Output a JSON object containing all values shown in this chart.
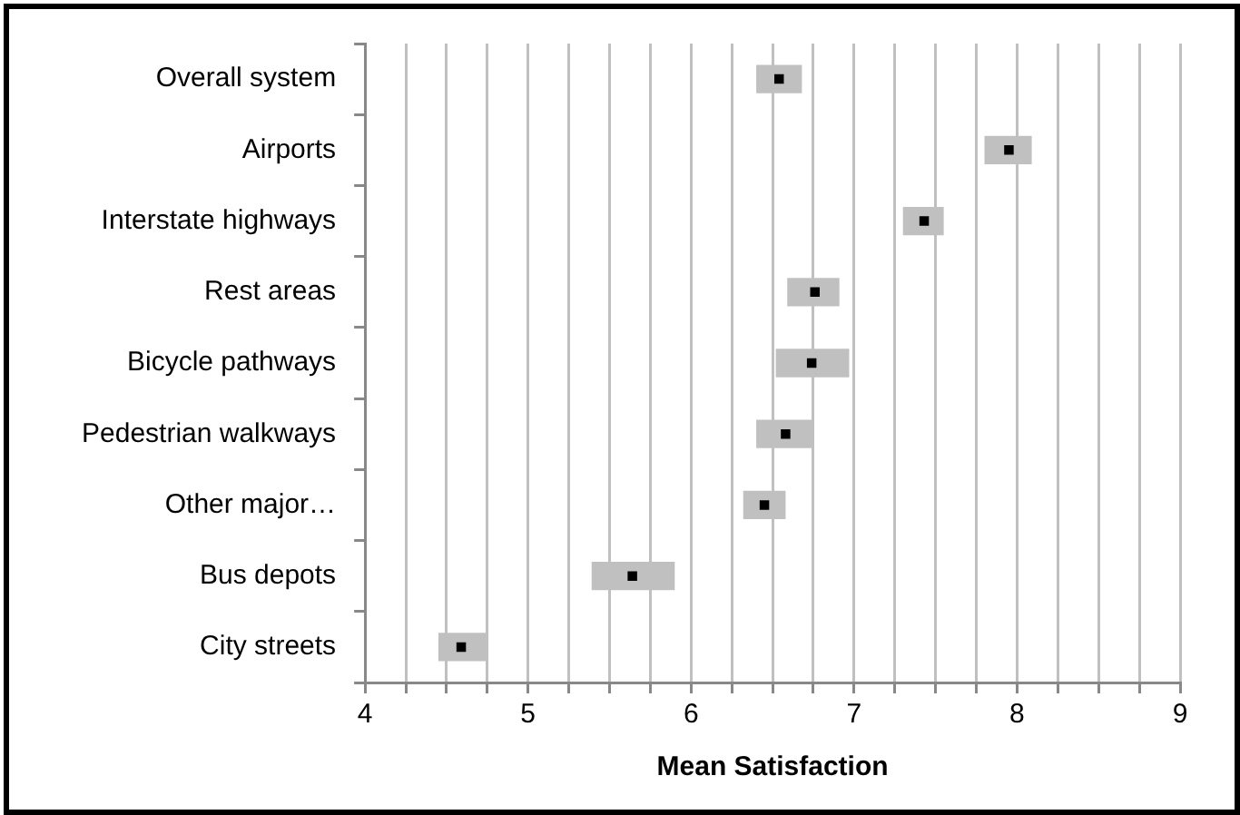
{
  "chart_data": {
    "type": "bar",
    "orientation": "horizontal",
    "xlabel": "Mean Satisfaction",
    "categories": [
      "Overall system",
      "Airports",
      "Interstate highways",
      "Rest areas",
      "Bicycle pathways",
      "Pedestrian walkways",
      "Other major…",
      "Bus depots",
      "City streets"
    ],
    "series": [
      {
        "type": "bar",
        "color": "#c0c0c0",
        "base": [
          6.4,
          7.8,
          7.3,
          6.59,
          6.52,
          6.4,
          6.32,
          5.39,
          4.45
        ],
        "values": [
          0.28,
          0.29,
          0.25,
          0.32,
          0.45,
          0.35,
          0.26,
          0.51,
          0.29
        ]
      },
      {
        "type": "scatter",
        "color": "#000000",
        "marker": "square",
        "values": [
          6.54,
          7.95,
          7.43,
          6.76,
          6.74,
          6.58,
          6.45,
          5.64,
          4.59
        ]
      }
    ],
    "xlim": [
      4,
      9
    ],
    "xticks": [
      4,
      {
        "value": 4.25,
        "label": null
      },
      {
        "value": 4.5,
        "label": null
      },
      {
        "value": 4.75,
        "label": null
      },
      5,
      {
        "value": 5.25,
        "label": null
      },
      {
        "value": 5.5,
        "label": null
      },
      {
        "value": 5.75,
        "label": null
      },
      6,
      {
        "value": 6.25,
        "label": null
      },
      {
        "value": 6.5,
        "label": null
      },
      {
        "value": 6.75,
        "label": null
      },
      7,
      {
        "value": 7.25,
        "label": null
      },
      {
        "value": 7.5,
        "label": null
      },
      {
        "value": 7.75,
        "label": null
      },
      8,
      {
        "value": 8.25,
        "label": null
      },
      {
        "value": 8.5,
        "label": null
      },
      {
        "value": 8.75,
        "label": null
      },
      9
    ],
    "grid": "x",
    "legend": false
  }
}
